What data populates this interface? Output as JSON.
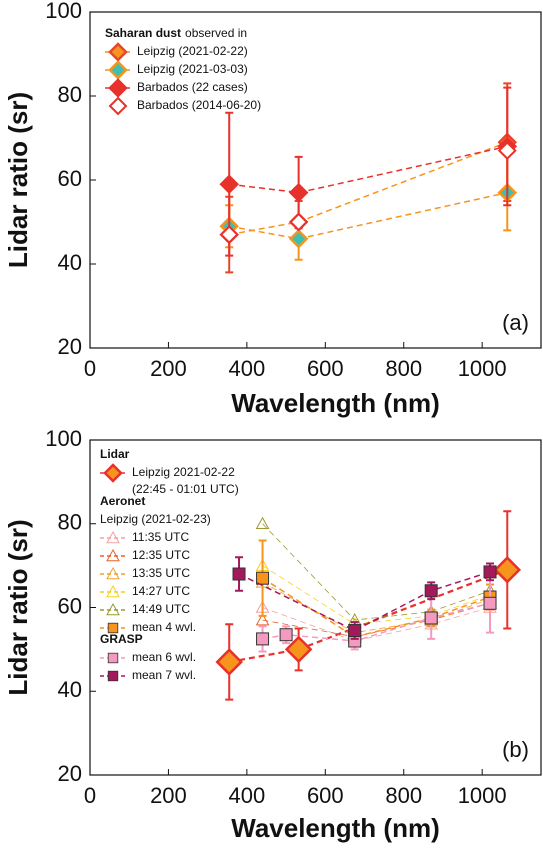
{
  "chart_data": [
    {
      "type": "line",
      "panel_label": "(a)",
      "x_label": "Wavelength (nm)",
      "y_label": "Lidar ratio (sr)",
      "xlim": [
        0,
        1150
      ],
      "ylim": [
        20,
        100
      ],
      "xticks": [
        0,
        200,
        400,
        600,
        800,
        1000
      ],
      "yticks": [
        20,
        40,
        60,
        80,
        100
      ],
      "groups": [
        {
          "title": "Saharan dust",
          "subtitle": "observed in",
          "series": [
            {
              "name": "Leipzig (2021-02-22)",
              "marker": "diamond",
              "color": "#f7941d",
              "edge": "#e8452a",
              "line_color": "#f7941d",
              "x": [
                355,
                532,
                1064
              ],
              "values": [
                47,
                50,
                69
              ],
              "errors": [
                9,
                5,
                14
              ]
            },
            {
              "name": "Leipzig (2021-03-03)",
              "marker": "diamond",
              "color": "#3cc0b4",
              "edge": "#f7941d",
              "line_color": "#f7941d",
              "x": [
                355,
                532,
                1064
              ],
              "values": [
                49,
                46,
                57
              ],
              "errors": [
                5,
                5,
                9
              ]
            },
            {
              "name": "Barbados (22 cases)",
              "marker": "diamond",
              "color": "#e8312a",
              "edge": "#e8312a",
              "line_color": "#e8312a",
              "x": [
                355,
                532,
                1064
              ],
              "values": [
                59,
                57,
                68
              ],
              "errors": [
                17,
                8.5,
                14
              ]
            },
            {
              "name": "Barbados  (2014-06-20)",
              "marker": "diamond-open",
              "color": "#e8312a",
              "x": [
                355,
                532,
                1064
              ],
              "values": [
                47,
                50,
                67
              ]
            }
          ]
        }
      ]
    },
    {
      "type": "line",
      "panel_label": "(b)",
      "x_label": "Wavelength (nm)",
      "y_label": "Lidar ratio (sr)",
      "xlim": [
        0,
        1150
      ],
      "ylim": [
        20,
        100
      ],
      "xticks": [
        0,
        200,
        400,
        600,
        800,
        1000
      ],
      "yticks": [
        20,
        40,
        60,
        80,
        100
      ],
      "groups": [
        {
          "title": "Lidar",
          "series": [
            {
              "name": "Leipzig 2021-02-22",
              "note": "(22:45 - 01:01 UTC)",
              "marker": "diamond-large",
              "color": "#f7941d",
              "edge": "#e8312a",
              "line_color": "#e8312a",
              "x": [
                355,
                532,
                1064
              ],
              "values": [
                47,
                50,
                69
              ],
              "errors": [
                9,
                5,
                14
              ]
            }
          ]
        },
        {
          "title": "Aeronet",
          "subtitle": "Leipzig (2021-02-23)",
          "series": [
            {
              "name": "11:35 UTC",
              "marker": "triangle-open",
              "color": "#f4a0a0",
              "line_color": "#f4a0a0",
              "x": [
                440,
                675,
                870,
                1020
              ],
              "values": [
                60,
                52,
                56,
                60
              ]
            },
            {
              "name": "12:35 UTC",
              "marker": "triangle-open",
              "color": "#e8632a",
              "line_color": "#e8632a",
              "x": [
                440,
                675,
                870,
                1020
              ],
              "values": [
                57,
                53,
                57,
                61
              ]
            },
            {
              "name": "13:35 UTC",
              "marker": "triangle-open",
              "color": "#f0a030",
              "line_color": "#f0a030",
              "x": [
                440,
                675,
                870,
                1020
              ],
              "values": [
                66,
                54,
                57,
                62
              ]
            },
            {
              "name": "14:27 UTC",
              "marker": "triangle-open",
              "color": "#f5d020",
              "line_color": "#f5d020",
              "x": [
                440,
                675,
                870,
                1020
              ],
              "values": [
                70,
                56,
                58,
                63
              ]
            },
            {
              "name": "14:49 UTC",
              "marker": "triangle-open",
              "color": "#9a9a30",
              "line_color": "#9a9a30",
              "x": [
                440,
                675,
                870,
                1020
              ],
              "values": [
                80,
                57,
                59,
                64
              ]
            },
            {
              "name": "mean 4 wvl.",
              "marker": "square",
              "color": "#f7941d",
              "edge": "#333333",
              "line_color": "#f7941d",
              "x": [
                440,
                675,
                870,
                1020
              ],
              "values": [
                67,
                53,
                57.5,
                62.5
              ],
              "errors": [
                9,
                2,
                2,
                3
              ]
            }
          ]
        },
        {
          "title": "GRASP",
          "series": [
            {
              "name": "mean 6 wvl.",
              "marker": "square",
              "color": "#f49ac1",
              "edge": "#333333",
              "line_color": "#f49ac1",
              "x": [
                440,
                500,
                675,
                870,
                1020
              ],
              "values": [
                52.5,
                53.5,
                52,
                57.5,
                61
              ],
              "errors": [
                3,
                2,
                2,
                5,
                7
              ]
            },
            {
              "name": "mean 7 wvl.",
              "marker": "square",
              "color": "#a3195b",
              "edge": "#333333",
              "line_color": "#a3195b",
              "x": [
                380,
                675,
                870,
                1020
              ],
              "values": [
                68,
                54.5,
                64,
                68.5
              ],
              "errors": [
                4,
                2,
                2,
                2
              ]
            }
          ]
        }
      ]
    }
  ]
}
